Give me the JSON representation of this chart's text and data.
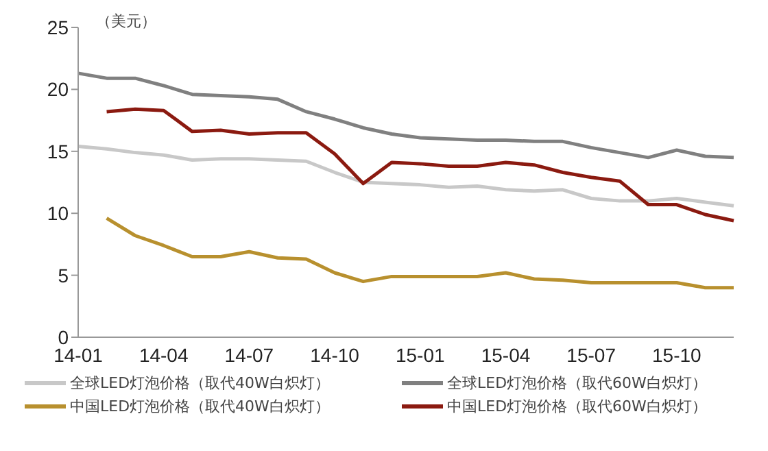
{
  "chart_data": {
    "type": "line",
    "ylabel": "（美元）",
    "categories": [
      "14-01",
      null,
      null,
      "14-04",
      null,
      null,
      "14-07",
      null,
      null,
      "14-10",
      null,
      null,
      "15-01",
      null,
      null,
      "15-04",
      null,
      null,
      "15-07",
      null,
      null,
      "15-10",
      null,
      null
    ],
    "ylim": [
      0,
      25
    ],
    "yticks": [
      0,
      5,
      10,
      15,
      20,
      25
    ],
    "grid": false,
    "legend": "bottom",
    "marker": "none",
    "line_style": "solid",
    "series": [
      {
        "name": "全球LED灯泡价格（取代40W白炽灯）",
        "color": "#c8c8c8",
        "values": [
          15.4,
          15.2,
          14.9,
          14.7,
          14.3,
          14.4,
          14.4,
          14.3,
          14.2,
          13.3,
          12.5,
          12.4,
          12.3,
          12.1,
          12.2,
          11.9,
          11.8,
          11.9,
          11.2,
          11.0,
          11.0,
          11.2,
          10.9,
          10.6
        ]
      },
      {
        "name": "全球LED灯泡价格（取代60W白炽灯）",
        "color": "#808080",
        "values": [
          21.3,
          20.9,
          20.9,
          20.3,
          19.6,
          19.5,
          19.4,
          19.2,
          18.2,
          17.6,
          16.9,
          16.4,
          16.1,
          16.0,
          15.9,
          15.9,
          15.8,
          15.8,
          15.3,
          14.9,
          14.5,
          15.1,
          14.6,
          14.5
        ]
      },
      {
        "name": "中国LED灯泡价格（取代40W白炽灯）",
        "color": "#b8902e",
        "values": [
          null,
          9.6,
          8.2,
          7.4,
          6.5,
          6.5,
          6.9,
          6.4,
          6.3,
          5.2,
          4.5,
          4.9,
          4.9,
          4.9,
          4.9,
          5.2,
          4.7,
          4.6,
          4.4,
          4.4,
          4.4,
          4.4,
          4.0,
          4.0
        ]
      },
      {
        "name": "中国LED灯泡价格（取代60W白炽灯）",
        "color": "#8b1a10",
        "values": [
          null,
          18.2,
          18.4,
          18.3,
          16.6,
          16.7,
          16.4,
          16.5,
          16.5,
          14.8,
          12.4,
          14.1,
          14.0,
          13.8,
          13.8,
          14.1,
          13.9,
          13.3,
          12.9,
          12.6,
          10.7,
          10.7,
          9.9,
          9.4
        ]
      }
    ]
  }
}
